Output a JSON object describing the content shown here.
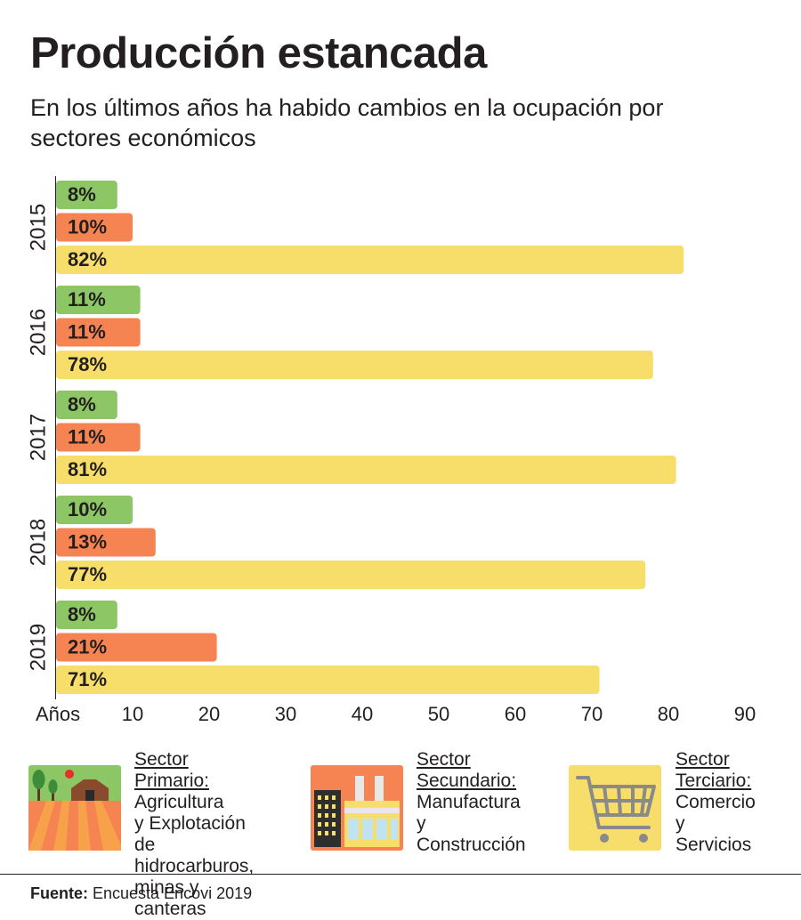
{
  "header": {
    "title": "Producción estancada",
    "subtitle": "En los últimos años ha habido cambios en la ocupación por sectores económicos"
  },
  "chart_data": {
    "type": "bar",
    "orientation": "horizontal",
    "categories": [
      "2015",
      "2016",
      "2017",
      "2018",
      "2019"
    ],
    "series": [
      {
        "name": "Sector Primario",
        "color": "#8cc665",
        "values": [
          8,
          11,
          8,
          10,
          8
        ]
      },
      {
        "name": "Sector Secundario",
        "color": "#f58452",
        "values": [
          10,
          11,
          11,
          13,
          21
        ]
      },
      {
        "name": "Sector Terciario",
        "color": "#f7de6a",
        "values": [
          82,
          78,
          81,
          77,
          71
        ]
      }
    ],
    "value_suffix": "%",
    "xlabel": "Años",
    "xticks": [
      10,
      20,
      30,
      40,
      50,
      60,
      70,
      80,
      90
    ],
    "xlim": [
      0,
      90
    ],
    "grid": false
  },
  "legend": [
    {
      "title": "Sector Primario:",
      "description": "Agricultura\ny Explotación\nde hidrocarburos,\nminas y canteras",
      "icon": "farm-icon",
      "color": "#8cc665"
    },
    {
      "title": "Sector Secundario:",
      "description": "Manufactura\ny Construcción",
      "icon": "factory-icon",
      "color": "#f58452"
    },
    {
      "title": "Sector Terciario:",
      "description": "Comercio\ny Servicios",
      "icon": "shopping-cart-icon",
      "color": "#f7de6a"
    }
  ],
  "footer": {
    "source_label": "Fuente:",
    "source_text": " Encuesta Encovi 2019"
  }
}
